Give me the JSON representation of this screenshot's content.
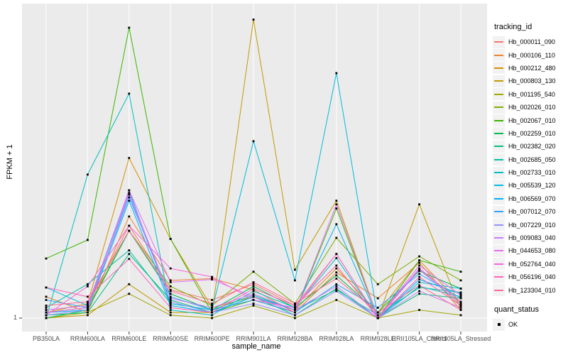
{
  "colors": {
    "panel_bg": "#EBEBEB",
    "gridline": "#FFFFFF",
    "point": "#000000",
    "axis_text": "#4D4D4D",
    "tick_mark": "#333333",
    "text": "#000000",
    "legend_key_bg": "#F2F2F2"
  },
  "axes": {
    "xlabel": "sample_name",
    "ylabel": "FPKM + 1",
    "y_tick_label": "1"
  },
  "legend": {
    "tracking_id_title": "tracking_id",
    "quant_status_title": "quant_status",
    "quant_status_value": "OK"
  },
  "chart_data": {
    "type": "line",
    "title": "",
    "xlabel": "sample_name",
    "ylabel": "FPKM + 1",
    "yscale": "log10",
    "ylim": [
      1,
      20000
    ],
    "y_tick_labels": [
      "1"
    ],
    "grid": "white-on-gray, vertical major lines per category, horizontal line at y=1",
    "legend_position": "right",
    "point_marker": "small black square (quant_status = OK)",
    "categories": [
      "PB350LA",
      "RRIM600LA",
      "RRIM600LE",
      "RRIM600SE",
      "RRIM600PE",
      "RRIM901LA",
      "RRIM928BA",
      "RRIM928LA",
      "RRIM928LE",
      "RRII105LA_Control",
      "RRII105LA_Stressed"
    ],
    "series": [
      {
        "name": "Hb_000011_090",
        "color": "#F8766D",
        "values": [
          1.3,
          1.5,
          20,
          2.5,
          1.8,
          3,
          1.5,
          8,
          1,
          5,
          1.5
        ]
      },
      {
        "name": "Hb_000106_110",
        "color": "#EA8331",
        "values": [
          2,
          1.2,
          27,
          3.4,
          3.6,
          2.5,
          1.2,
          4.4,
          1.9,
          6,
          1.3
        ]
      },
      {
        "name": "Hb_000212_480",
        "color": "#D89000",
        "values": [
          1.2,
          1.6,
          180,
          13,
          1.4,
          2,
          1.3,
          5,
          1.2,
          6.5,
          1.6
        ]
      },
      {
        "name": "Hb_000803_130",
        "color": "#C09B00",
        "values": [
          1,
          1.1,
          3,
          1.2,
          1.2,
          16000,
          4.8,
          45,
          1,
          40,
          1.3
        ]
      },
      {
        "name": "Hb_001195_540",
        "color": "#A3A500",
        "values": [
          1,
          1.2,
          2.2,
          1.1,
          1,
          1.5,
          1,
          1.8,
          1,
          1.3,
          1.1
        ]
      },
      {
        "name": "Hb_002026_010",
        "color": "#7CAE00",
        "values": [
          1.2,
          1.4,
          17,
          2.8,
          1.5,
          4.5,
          1.6,
          13.5,
          3,
          7.4,
          3.4
        ]
      },
      {
        "name": "Hb_002067_010",
        "color": "#39B600",
        "values": [
          6.9,
          12.6,
          12300,
          13,
          1.2,
          1.8,
          1.2,
          35,
          1,
          6.5,
          4.5
        ]
      },
      {
        "name": "Hb_002259_010",
        "color": "#00BB4E",
        "values": [
          1,
          1.3,
          17,
          2.2,
          1.3,
          2.8,
          1.4,
          4,
          1.2,
          4.6,
          2.6
        ]
      },
      {
        "name": "Hb_002382_020",
        "color": "#00BF7D",
        "values": [
          1.1,
          1.2,
          8,
          1.8,
          1.2,
          2,
          1.1,
          2.6,
          1,
          2.2,
          1.9
        ]
      },
      {
        "name": "Hb_002685_050",
        "color": "#00C1A3",
        "values": [
          1.4,
          3,
          9,
          1.6,
          1.3,
          2.1,
          1.3,
          2.5,
          1.1,
          2.7,
          2.3
        ]
      },
      {
        "name": "Hb_002733_010",
        "color": "#00BFC4",
        "values": [
          1,
          105,
          1450,
          1.3,
          1.1,
          2.4,
          1.4,
          7,
          1,
          2.8,
          2
        ]
      },
      {
        "name": "Hb_005539_120",
        "color": "#00BAE0",
        "values": [
          2.7,
          1.5,
          63,
          1.6,
          1.3,
          310,
          3.4,
          2820,
          1,
          3.2,
          2.6
        ]
      },
      {
        "name": "Hb_006569_070",
        "color": "#00B0F6",
        "values": [
          1.2,
          1.3,
          45,
          1.5,
          1.2,
          2,
          1.3,
          21,
          1,
          3.5,
          2.2
        ]
      },
      {
        "name": "Hb_007012_070",
        "color": "#35A2FF",
        "values": [
          1.8,
          1.4,
          50,
          2,
          1.3,
          1.8,
          1.2,
          3,
          1.4,
          4.2,
          1.9
        ]
      },
      {
        "name": "Hb_007229_010",
        "color": "#9590FF",
        "values": [
          1.1,
          1.3,
          55,
          1.7,
          1.2,
          1.6,
          1.1,
          2.4,
          1,
          4.8,
          1.6
        ]
      },
      {
        "name": "Hb_009083_040",
        "color": "#C77CFF",
        "values": [
          1.3,
          1.5,
          58,
          1.9,
          1.4,
          2.2,
          1.3,
          2.8,
          1,
          2.4,
          1.4
        ]
      },
      {
        "name": "Hb_044653_080",
        "color": "#E76BF3",
        "values": [
          1.2,
          1.4,
          63,
          3.2,
          3.5,
          2,
          1.2,
          40,
          1,
          5.5,
          2.1
        ]
      },
      {
        "name": "Hb_052764_040",
        "color": "#FA62DB",
        "values": [
          1.1,
          2.8,
          20,
          5,
          3.8,
          1.8,
          1.4,
          8,
          1,
          5,
          1.7
        ]
      },
      {
        "name": "Hb_056196_040",
        "color": "#FF62BC",
        "values": [
          2.7,
          2,
          6.8,
          1.4,
          1.2,
          2.6,
          1.5,
          5.5,
          1,
          3.8,
          1.5
        ]
      },
      {
        "name": "Hb_123304_010",
        "color": "#FF6A98",
        "values": [
          1.5,
          1.7,
          17,
          2.4,
          1.6,
          3.2,
          1.6,
          3.6,
          1.2,
          2.9,
          1.3
        ]
      }
    ]
  }
}
